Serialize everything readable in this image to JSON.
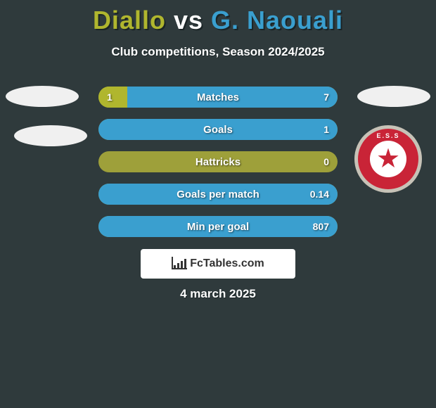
{
  "title": {
    "player1": "Diallo",
    "vs": "vs",
    "player2": "G. Naouali",
    "player1_color": "#b0b62e",
    "vs_color": "#ffffff",
    "player2_color": "#3a9fcf"
  },
  "subtitle": "Club competitions, Season 2024/2025",
  "colors": {
    "background": "#2f3a3c",
    "left_side": "#b0b62e",
    "right_side": "#3a9fcf",
    "bar_base": "#9ea03a",
    "oval": "#f0f0f0",
    "badge_outer": "#c7c2b7",
    "badge_mid": "#c92437",
    "badge_inner": "#ffffff",
    "text": "#ffffff"
  },
  "bars": [
    {
      "label": "Matches",
      "left": "1",
      "right": "7",
      "left_pct": 12,
      "right_pct": 88
    },
    {
      "label": "Goals",
      "left": "",
      "right": "1",
      "left_pct": 0,
      "right_pct": 100
    },
    {
      "label": "Hattricks",
      "left": "",
      "right": "0",
      "left_pct": 0,
      "right_pct": 0
    },
    {
      "label": "Goals per match",
      "left": "",
      "right": "0.14",
      "left_pct": 0,
      "right_pct": 100
    },
    {
      "label": "Min per goal",
      "left": "",
      "right": "807",
      "left_pct": 0,
      "right_pct": 100
    }
  ],
  "badge": {
    "text": "E.S.S"
  },
  "logo": "FcTables.com",
  "date": "4 march 2025"
}
